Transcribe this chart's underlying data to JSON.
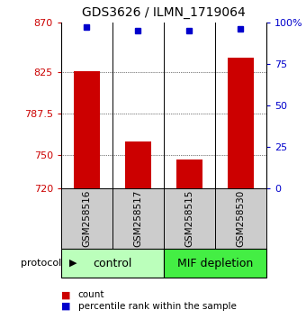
{
  "title": "GDS3626 / ILMN_1719064",
  "samples": [
    "GSM258516",
    "GSM258517",
    "GSM258515",
    "GSM258530"
  ],
  "bar_values": [
    826,
    762,
    746,
    838
  ],
  "percentile_values": [
    97,
    95,
    95,
    96
  ],
  "ylim": [
    720,
    870
  ],
  "yticks": [
    720,
    750,
    787.5,
    825,
    870
  ],
  "ytick_labels": [
    "720",
    "750",
    "787.5",
    "825",
    "870"
  ],
  "right_yticks": [
    0,
    25,
    50,
    75,
    100
  ],
  "right_ytick_labels": [
    "0",
    "25",
    "50",
    "75",
    "100%"
  ],
  "bar_color": "#cc0000",
  "percentile_color": "#0000cc",
  "bar_bottom": 720,
  "group_configs": [
    {
      "start": 0,
      "end": 2,
      "label": "control",
      "color": "#bbffbb"
    },
    {
      "start": 2,
      "end": 4,
      "label": "MIF depletion",
      "color": "#44ee44"
    }
  ],
  "sample_box_color": "#cccccc",
  "legend_count_color": "#cc0000",
  "legend_pct_color": "#0000cc",
  "title_fontsize": 10,
  "tick_fontsize": 8,
  "sample_fontsize": 7.5,
  "group_fontsize": 9,
  "legend_fontsize": 7.5,
  "protocol_label": "protocol",
  "protocol_arrow": "▶"
}
